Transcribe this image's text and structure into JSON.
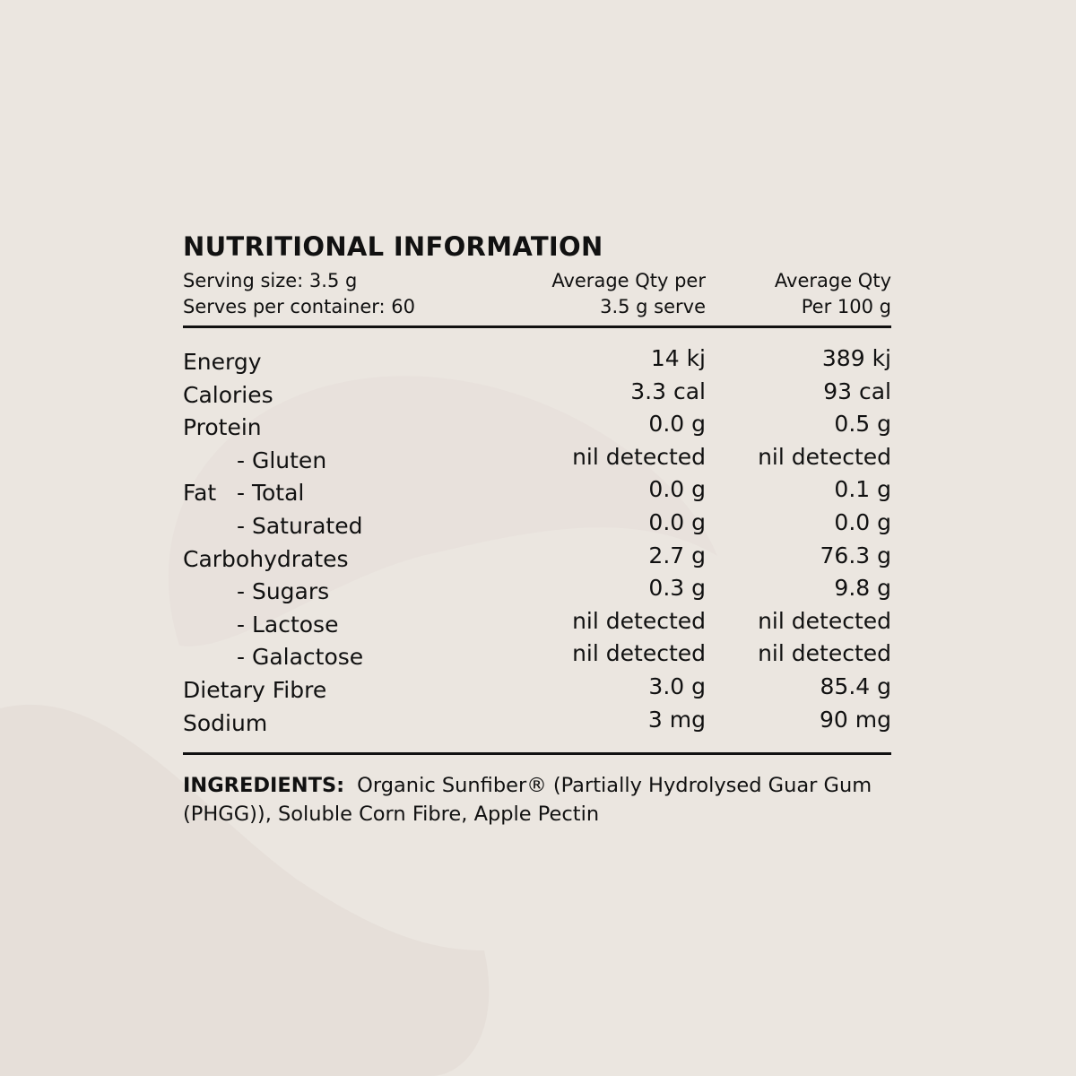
{
  "colors": {
    "background": "#ebe6e0",
    "shape": "#e6dfd9",
    "text": "#111111"
  },
  "title": "NUTRITIONAL INFORMATION",
  "header": {
    "serving_size": "Serving size: 3.5 g",
    "serves": "Serves per container: 60",
    "col1_line1": "Average Qty per",
    "col1_line2": "3.5 g serve",
    "col2_line1": "Average Qty",
    "col2_line2": "Per 100 g"
  },
  "rows": [
    {
      "prefix": "",
      "label": "Energy",
      "per_serve": "14 kj",
      "per_100g": "389 kj"
    },
    {
      "prefix": "",
      "label": "Calories",
      "per_serve": "3.3 cal",
      "per_100g": "93 cal"
    },
    {
      "prefix": "",
      "label": "Protein",
      "per_serve": "0.0 g",
      "per_100g": "0.5 g"
    },
    {
      "prefix": "",
      "label": "- Gluten",
      "per_serve": "nil detected",
      "per_100g": "nil detected"
    },
    {
      "prefix": "Fat",
      "label": "- Total",
      "per_serve": "0.0 g",
      "per_100g": "0.1 g"
    },
    {
      "prefix": "",
      "label": "- Saturated",
      "per_serve": "0.0 g",
      "per_100g": "0.0 g"
    },
    {
      "prefix": "",
      "label": "Carbohydrates",
      "per_serve": "2.7 g",
      "per_100g": "76.3 g"
    },
    {
      "prefix": "",
      "label": "- Sugars",
      "per_serve": "0.3 g",
      "per_100g": "9.8 g"
    },
    {
      "prefix": "",
      "label": "- Lactose",
      "per_serve": "nil detected",
      "per_100g": "nil detected"
    },
    {
      "prefix": "",
      "label": "- Galactose",
      "per_serve": "nil detected",
      "per_100g": "nil detected"
    },
    {
      "prefix": "",
      "label": "Dietary Fibre",
      "per_serve": "3.0 g",
      "per_100g": "85.4 g"
    },
    {
      "prefix": "",
      "label": "Sodium",
      "per_serve": "3 mg",
      "per_100g": "90 mg"
    }
  ],
  "ingredients": {
    "label": "INGREDIENTS:",
    "text": "Organic Sunfiber® (Partially Hydrolysed Guar Gum (PHGG)), Soluble Corn Fibre, Apple Pectin"
  }
}
